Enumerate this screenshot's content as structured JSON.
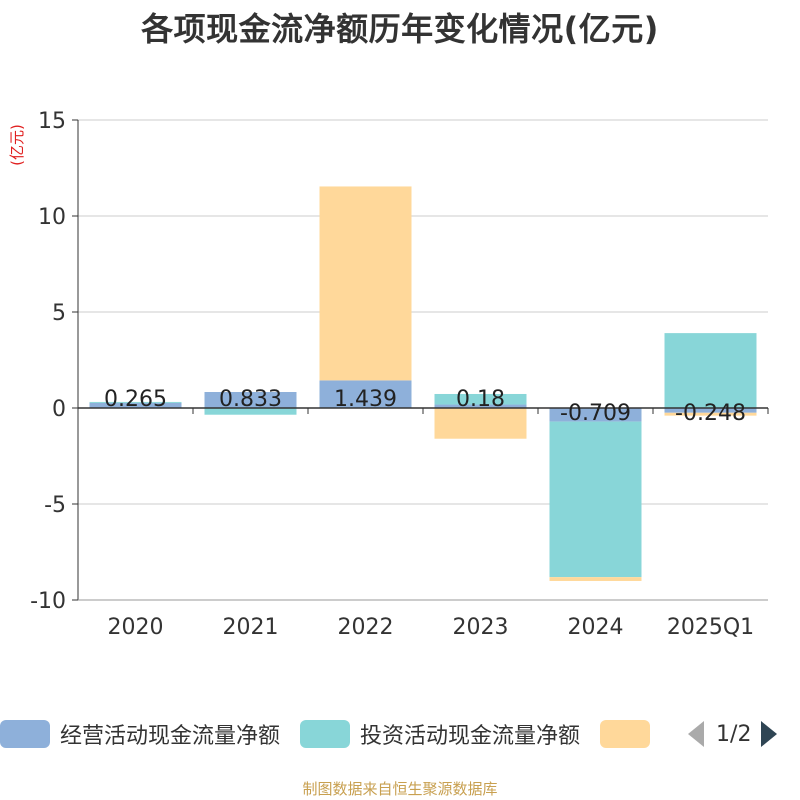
{
  "title": "各项现金流净额历年变化情况(亿元)",
  "source_note": "制图数据来自恒生聚源数据库",
  "legend_pager": "1/2",
  "chart_data": {
    "type": "bar",
    "stacked": true,
    "title": "各项现金流净额历年变化情况(亿元)",
    "ylabel": "(亿元)",
    "ylim": [
      -10,
      15
    ],
    "yticks": [
      15,
      10,
      5,
      0,
      -5,
      -10
    ],
    "grid": true,
    "legend_position": "bottom",
    "categories": [
      "2020",
      "2021",
      "2022",
      "2023",
      "2024",
      "2025Q1"
    ],
    "series": [
      {
        "name": "经营活动现金流量净额",
        "color": "#8eb0da",
        "values": [
          0.265,
          0.833,
          1.439,
          0.18,
          -0.709,
          -0.248
        ]
      },
      {
        "name": "投资活动现金流量净额",
        "color": "#88d6d8",
        "values": [
          0.05,
          -0.35,
          0.0,
          0.55,
          -8.1,
          3.9
        ]
      },
      {
        "name": "",
        "color": "#ffd89a",
        "values": [
          0.0,
          0.0,
          10.1,
          -1.6,
          -0.2,
          -0.15
        ]
      }
    ],
    "data_labels": [
      "0.265",
      "0.833",
      "1.439",
      "0.18",
      "-0.709",
      "-0.248"
    ]
  }
}
